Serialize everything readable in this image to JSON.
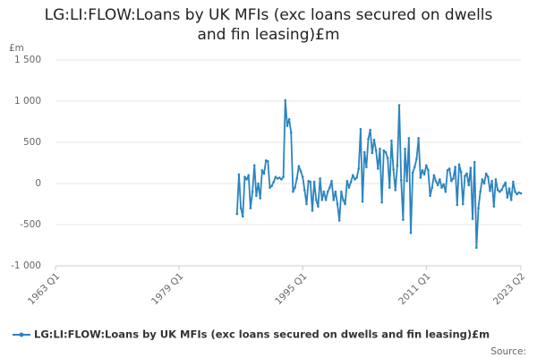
{
  "chart_data": {
    "type": "line",
    "title": "LG:LI:FLOW:Loans by UK MFIs (exc loans secured on dwells and fin leasing)£m",
    "y_unit": "£m",
    "source": "Source:",
    "xlim": [
      "1963 Q1",
      "2023 Q2"
    ],
    "xticks": [
      "1963 Q1",
      "1979 Q1",
      "1995 Q1",
      "2011 Q1",
      "2023 Q2"
    ],
    "ylim": [
      -1000,
      1500
    ],
    "yticks": [
      {
        "value": -1000,
        "label": "-1 000"
      },
      -500,
      0,
      500,
      {
        "value": 1000,
        "label": "1 000"
      },
      {
        "value": 1500,
        "label": "1 500"
      }
    ],
    "grid": true,
    "legend": "bottom",
    "x": [
      "1986 Q3",
      "1986 Q4",
      "1987 Q1",
      "1987 Q2",
      "1987 Q3",
      "1987 Q4",
      "1988 Q1",
      "1988 Q2",
      "1988 Q3",
      "1988 Q4",
      "1989 Q1",
      "1989 Q2",
      "1989 Q3",
      "1989 Q4",
      "1990 Q1",
      "1990 Q2",
      "1990 Q3",
      "1990 Q4",
      "1991 Q1",
      "1991 Q2",
      "1991 Q3",
      "1991 Q4",
      "1992 Q1",
      "1992 Q2",
      "1992 Q3",
      "1992 Q4",
      "1993 Q1",
      "1993 Q2",
      "1993 Q3",
      "1993 Q4",
      "1994 Q1",
      "1994 Q2",
      "1994 Q3",
      "1994 Q4",
      "1995 Q1",
      "1995 Q2",
      "1995 Q3",
      "1995 Q4",
      "1996 Q1",
      "1996 Q2",
      "1996 Q3",
      "1996 Q4",
      "1997 Q1",
      "1997 Q2",
      "1997 Q3",
      "1997 Q4",
      "1998 Q1",
      "1998 Q2",
      "1998 Q3",
      "1998 Q4",
      "1999 Q1",
      "1999 Q2",
      "1999 Q3",
      "1999 Q4",
      "2000 Q1",
      "2000 Q2",
      "2000 Q3",
      "2000 Q4",
      "2001 Q1",
      "2001 Q2",
      "2001 Q3",
      "2001 Q4",
      "2002 Q1",
      "2002 Q2",
      "2002 Q3",
      "2002 Q4",
      "2003 Q1",
      "2003 Q2",
      "2003 Q3",
      "2003 Q4",
      "2004 Q1",
      "2004 Q2",
      "2004 Q3",
      "2004 Q4",
      "2005 Q1",
      "2005 Q2",
      "2005 Q3",
      "2005 Q4",
      "2006 Q1",
      "2006 Q2",
      "2006 Q3",
      "2006 Q4",
      "2007 Q1",
      "2007 Q2",
      "2007 Q3",
      "2007 Q4",
      "2008 Q1",
      "2008 Q2",
      "2008 Q3",
      "2008 Q4",
      "2009 Q1",
      "2009 Q2",
      "2009 Q3",
      "2009 Q4",
      "2010 Q1",
      "2010 Q2",
      "2010 Q3",
      "2010 Q4",
      "2011 Q1",
      "2011 Q2",
      "2011 Q3",
      "2011 Q4",
      "2012 Q1",
      "2012 Q2",
      "2012 Q3",
      "2012 Q4",
      "2013 Q1",
      "2013 Q2",
      "2013 Q3",
      "2013 Q4",
      "2014 Q1",
      "2014 Q2",
      "2014 Q3",
      "2014 Q4",
      "2015 Q1",
      "2015 Q2",
      "2015 Q3",
      "2015 Q4",
      "2016 Q1",
      "2016 Q2",
      "2016 Q3",
      "2016 Q4",
      "2017 Q1",
      "2017 Q2",
      "2017 Q3",
      "2017 Q4",
      "2018 Q1",
      "2018 Q2",
      "2018 Q3",
      "2018 Q4",
      "2019 Q1",
      "2019 Q2",
      "2019 Q3",
      "2019 Q4",
      "2020 Q1",
      "2020 Q2",
      "2020 Q3",
      "2020 Q4",
      "2021 Q1",
      "2021 Q2",
      "2021 Q3",
      "2021 Q4",
      "2022 Q1",
      "2022 Q2",
      "2022 Q3",
      "2022 Q4",
      "2023 Q1",
      "2023 Q2"
    ],
    "series": [
      {
        "name": "LG:LI:FLOW:Loans by UK MFIs (exc loans secured on dwells and fin leasing)£m",
        "color": "#2b84c0",
        "values": [
          -370,
          110,
          -300,
          -400,
          80,
          50,
          100,
          -300,
          -100,
          220,
          -150,
          0,
          -180,
          160,
          120,
          280,
          270,
          -50,
          -30,
          20,
          80,
          60,
          70,
          50,
          80,
          1010,
          700,
          780,
          620,
          -100,
          -50,
          60,
          210,
          150,
          80,
          -80,
          -250,
          30,
          20,
          -330,
          20,
          -200,
          -280,
          60,
          -200,
          -100,
          -200,
          -100,
          -50,
          30,
          -200,
          -100,
          -250,
          -450,
          -100,
          -200,
          -250,
          30,
          -50,
          20,
          100,
          50,
          70,
          180,
          660,
          -220,
          380,
          200,
          540,
          650,
          370,
          530,
          400,
          180,
          420,
          -230,
          400,
          380,
          310,
          -50,
          520,
          170,
          -80,
          220,
          950,
          40,
          -440,
          420,
          30,
          550,
          -600,
          130,
          200,
          300,
          550,
          70,
          160,
          110,
          220,
          160,
          -150,
          -50,
          100,
          30,
          -20,
          50,
          -50,
          -10,
          -100,
          160,
          180,
          30,
          60,
          200,
          -260,
          230,
          140,
          -250,
          90,
          120,
          -20,
          190,
          -430,
          260,
          -780,
          -300,
          -100,
          50,
          0,
          120,
          80,
          -90,
          30,
          -280,
          50,
          -80,
          -100,
          -80,
          -30,
          10,
          -170,
          -60,
          -200,
          20,
          -100,
          -130,
          -110,
          -120
        ]
      }
    ]
  }
}
